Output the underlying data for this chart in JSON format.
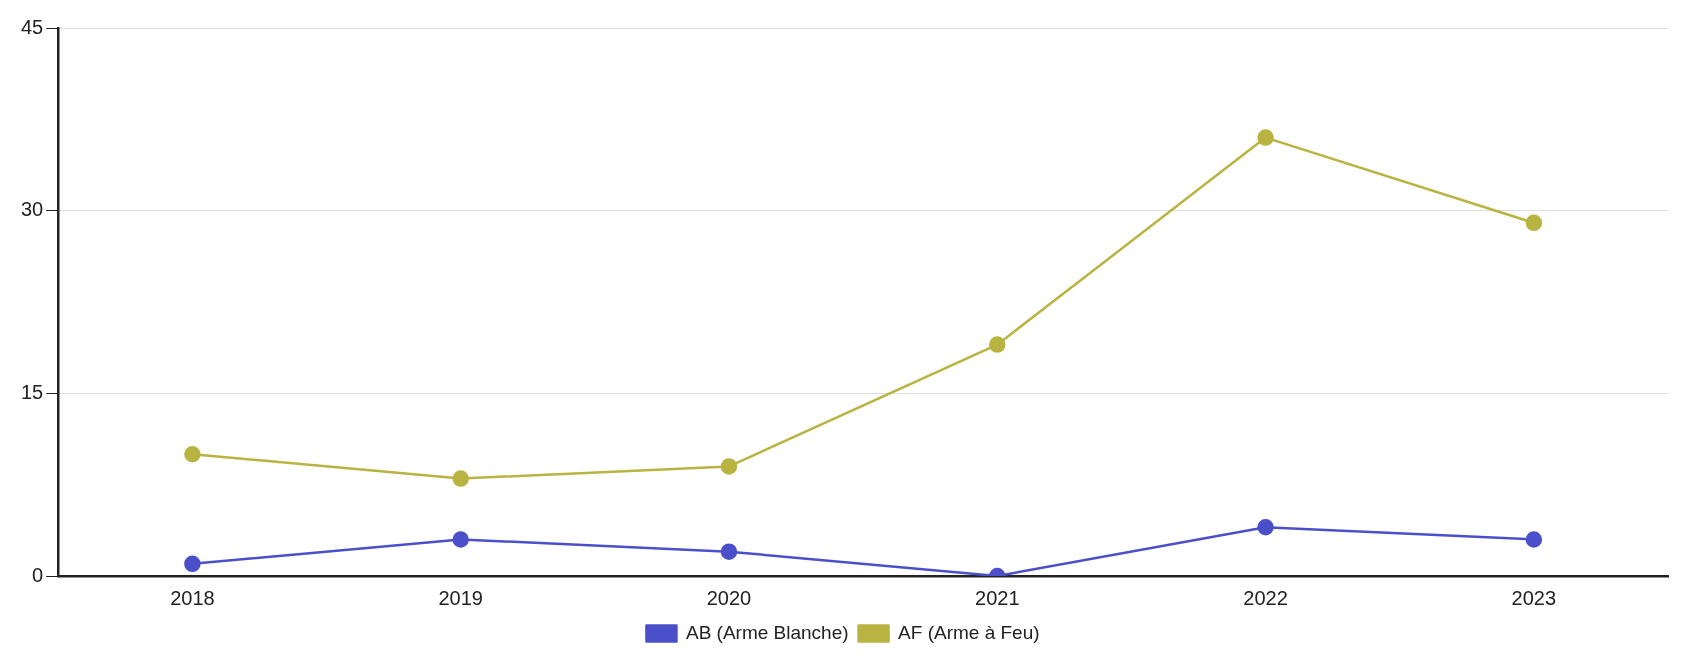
{
  "chart_data": {
    "type": "line",
    "categories": [
      "2018",
      "2019",
      "2020",
      "2021",
      "2022",
      "2023"
    ],
    "series": [
      {
        "name": "AB (Arme Blanche)",
        "color": "#4b4fc9",
        "values": [
          1,
          3,
          2,
          0,
          4,
          3
        ]
      },
      {
        "name": "AF (Arme à Feu)",
        "color": "#b9b441",
        "values": [
          10,
          8,
          9,
          19,
          36,
          29
        ]
      }
    ],
    "ylim": [
      0,
      45
    ],
    "yticks": [
      0,
      15,
      30,
      45
    ],
    "grid": "y",
    "legend": "bottom",
    "marker": "circle",
    "line_style": "solid"
  }
}
